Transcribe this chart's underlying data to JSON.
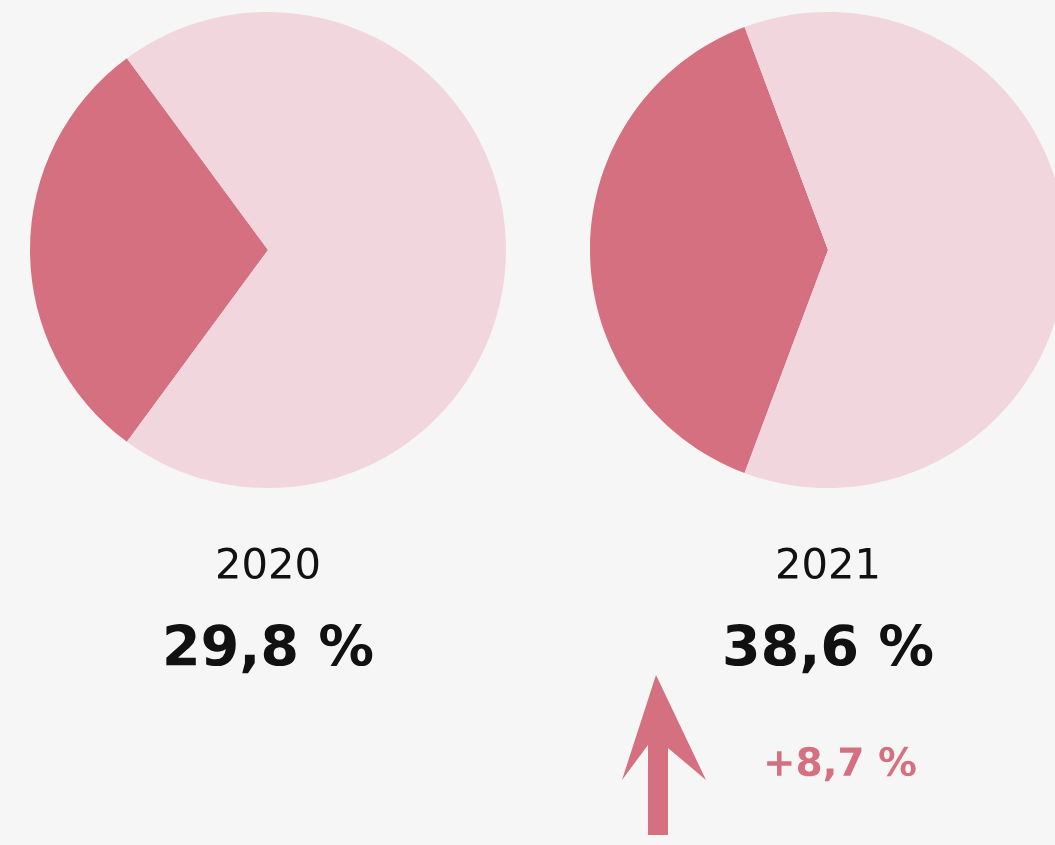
{
  "chart_data": [
    {
      "type": "pie",
      "title": "2020",
      "categories": [
        null,
        null
      ],
      "values": [
        29.8,
        70.2
      ],
      "colors": [
        "#d4707f",
        "#f2d6dd"
      ],
      "annotations": [
        "29,8 %"
      ]
    },
    {
      "type": "pie",
      "title": "2021",
      "categories": [
        null,
        null
      ],
      "values": [
        38.6,
        61.4
      ],
      "colors": [
        "#d4707f",
        "#f2d6dd"
      ],
      "annotations": [
        "38,6 %",
        "+8,7 %"
      ]
    }
  ]
}
